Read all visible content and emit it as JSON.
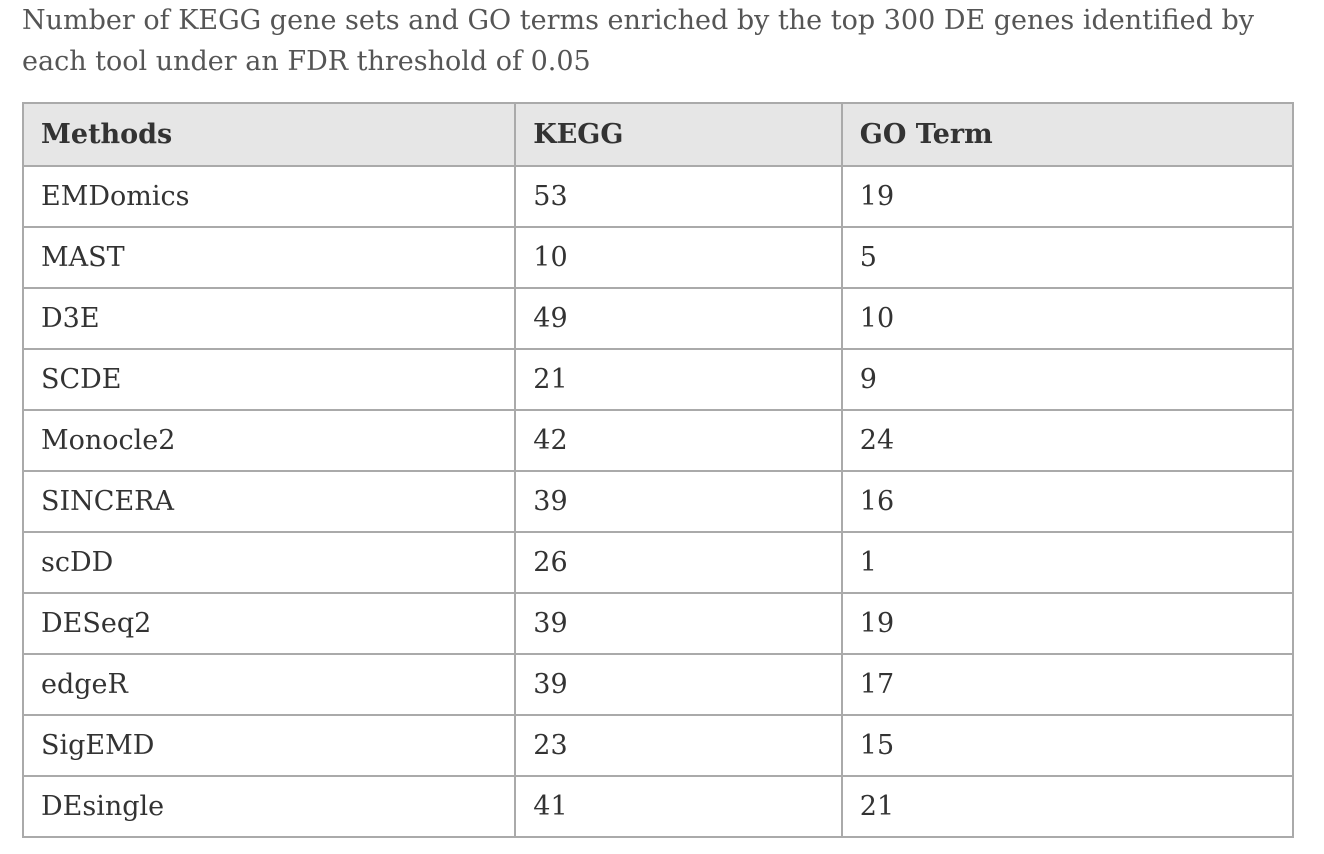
{
  "caption": "Number of KEGG gene sets and GO terms enriched by the top 300 DE genes identified by each tool under an FDR threshold of 0.05",
  "table": {
    "headers": [
      "Methods",
      "KEGG",
      "GO Term"
    ],
    "rows": [
      [
        "EMDomics",
        "53",
        "19"
      ],
      [
        "MAST",
        "10",
        "5"
      ],
      [
        "D3E",
        "49",
        "10"
      ],
      [
        "SCDE",
        "21",
        "9"
      ],
      [
        "Monocle2",
        "42",
        "24"
      ],
      [
        "SINCERA",
        "39",
        "16"
      ],
      [
        "scDD",
        "26",
        "1"
      ],
      [
        "DESeq2",
        "39",
        "19"
      ],
      [
        "edgeR",
        "39",
        "17"
      ],
      [
        "SigEMD",
        "23",
        "15"
      ],
      [
        "DEsingle",
        "41",
        "21"
      ]
    ]
  }
}
